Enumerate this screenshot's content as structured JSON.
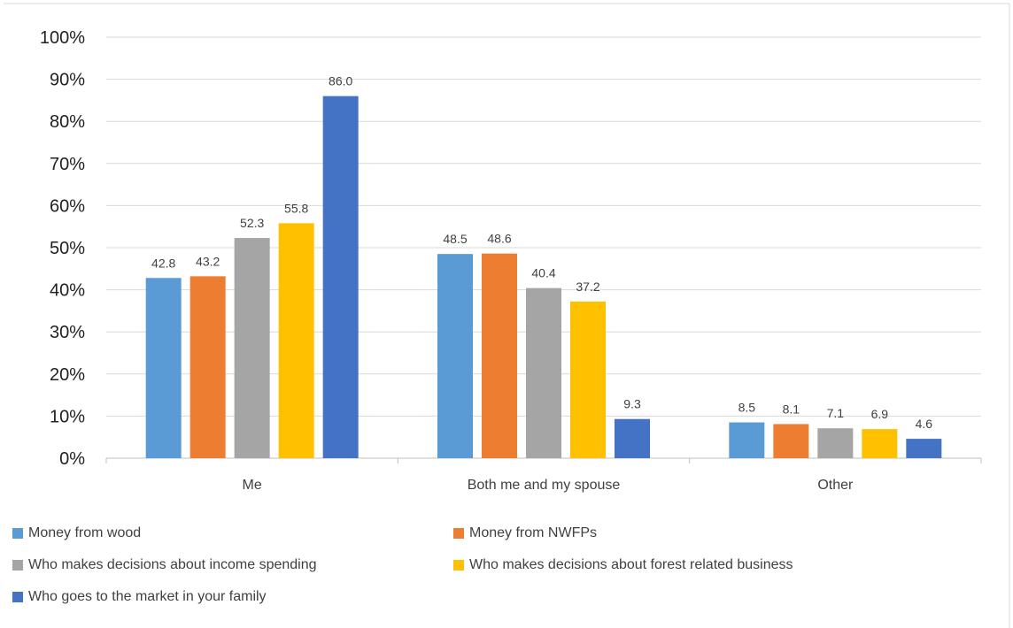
{
  "chart_data": {
    "type": "bar",
    "categories": [
      "Me",
      "Both me and my spouse",
      "Other"
    ],
    "series": [
      {
        "name": "Money from wood",
        "color": "#5b9bd5",
        "values": [
          42.8,
          48.5,
          8.5
        ],
        "labels": [
          "42.8",
          "48.5",
          "8.5"
        ]
      },
      {
        "name": "Money from NWFPs",
        "color": "#ed7d31",
        "values": [
          43.2,
          48.6,
          8.1
        ],
        "labels": [
          "43.2",
          "48.6",
          "8.1"
        ]
      },
      {
        "name": "Who makes decisions about income spending",
        "color": "#a5a5a5",
        "values": [
          52.3,
          40.4,
          7.1
        ],
        "labels": [
          "52.3",
          "40.4",
          "7.1"
        ]
      },
      {
        "name": "Who makes decisions about forest related business",
        "color": "#ffc000",
        "values": [
          55.8,
          37.2,
          6.9
        ],
        "labels": [
          "55.8",
          "37.2",
          "6.9"
        ]
      },
      {
        "name": "Who goes to the market in your family",
        "color": "#4472c4",
        "values": [
          86.0,
          9.3,
          4.6
        ],
        "labels": [
          "86.0",
          "9.3",
          "4.6"
        ]
      }
    ],
    "yticks": [
      "0%",
      "10%",
      "20%",
      "30%",
      "40%",
      "50%",
      "60%",
      "70%",
      "80%",
      "90%",
      "100%"
    ],
    "ylim": [
      0,
      100
    ],
    "grid": true,
    "legend_position": "bottom"
  }
}
